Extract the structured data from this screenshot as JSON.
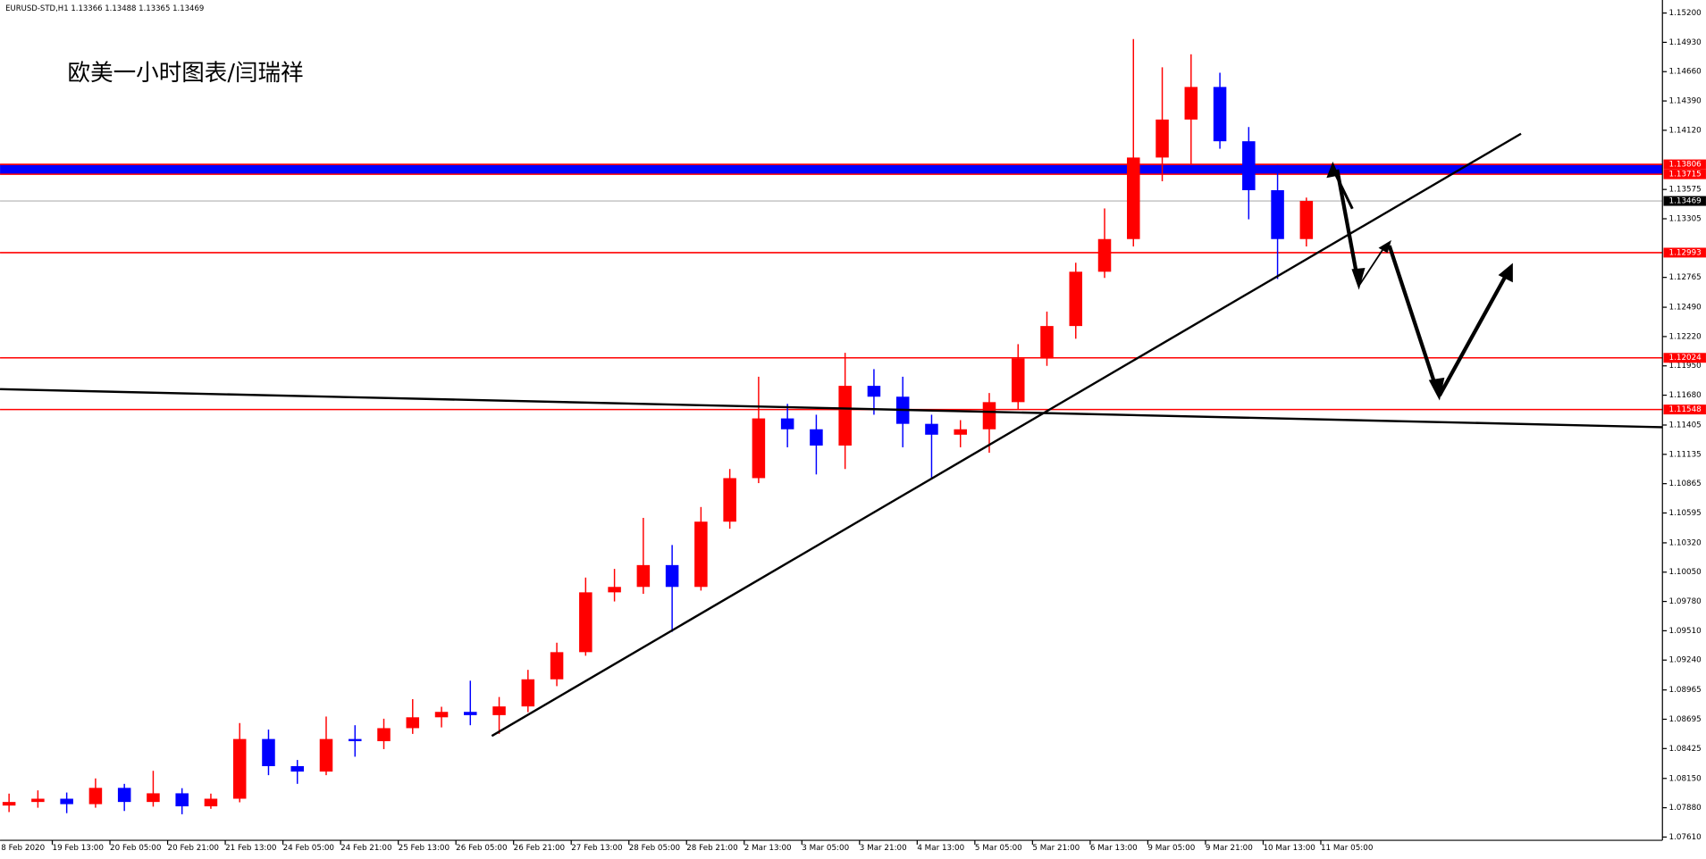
{
  "chart_data": {
    "type": "candlestick",
    "header": "EURUSD-STD,H1  1.13366 1.13488 1.13365 1.13469",
    "title": "欧美一小时图表/闫瑞祥",
    "up_color": "#ff0000",
    "down_color": "#0000ff",
    "x": [
      4,
      12,
      20,
      28,
      36,
      44,
      52,
      60,
      68,
      76,
      84,
      92,
      100,
      108,
      116,
      124,
      132,
      140,
      148,
      156,
      164,
      172,
      180,
      188,
      196,
      204,
      212,
      220,
      228,
      236,
      244,
      252,
      260,
      268,
      276,
      284,
      292,
      300,
      308,
      316,
      324,
      332,
      340,
      348,
      356,
      364
    ],
    "open": [
      1.079,
      1.07933,
      1.07963,
      1.07913,
      1.08063,
      1.07933,
      1.08013,
      1.07893,
      1.07963,
      1.08513,
      1.08263,
      1.08213,
      1.08513,
      1.08493,
      1.08613,
      1.08713,
      1.08763,
      1.08733,
      1.08813,
      1.09063,
      1.09313,
      1.09864,
      1.09914,
      1.10115,
      1.09914,
      1.10515,
      1.10916,
      1.11466,
      1.11366,
      1.11216,
      1.11766,
      1.11666,
      1.11416,
      1.11316,
      1.11366,
      1.11616,
      1.12017,
      1.12317,
      1.12817,
      1.13118,
      1.13869,
      1.14219,
      1.14519,
      1.14019,
      1.13568,
      1.13118
    ],
    "high": [
      1.0801,
      1.0804,
      1.0802,
      1.0815,
      1.081,
      1.0822,
      1.0806,
      1.0801,
      1.0866,
      1.086,
      1.0832,
      1.0872,
      1.0864,
      1.087,
      1.0888,
      1.0881,
      1.0905,
      1.089,
      1.0915,
      1.094,
      1.1,
      1.1008,
      1.1055,
      1.103,
      1.1065,
      1.11,
      1.1185,
      1.116,
      1.115,
      1.1207,
      1.1192,
      1.1185,
      1.115,
      1.1145,
      1.117,
      1.1215,
      1.1245,
      1.129,
      1.134,
      1.1496,
      1.147,
      1.1482,
      1.1465,
      1.1415,
      1.138,
      1.135
    ],
    "low": [
      1.0784,
      1.0788,
      1.0783,
      1.0788,
      1.0785,
      1.0789,
      1.0782,
      1.0787,
      1.0793,
      1.0818,
      1.081,
      1.0818,
      1.0835,
      1.0842,
      1.0856,
      1.0862,
      1.0864,
      1.0856,
      1.0876,
      1.09,
      1.0928,
      1.0978,
      1.0985,
      1.095,
      1.0988,
      1.1045,
      1.1087,
      1.112,
      1.1095,
      1.11,
      1.115,
      1.112,
      1.1092,
      1.112,
      1.1115,
      1.1155,
      1.1195,
      1.122,
      1.1276,
      1.1305,
      1.1365,
      1.138,
      1.1395,
      1.133,
      1.1275,
      1.1305
    ],
    "close": [
      1.07933,
      1.07963,
      1.07913,
      1.08063,
      1.07933,
      1.08013,
      1.07893,
      1.07963,
      1.08513,
      1.08263,
      1.08213,
      1.08513,
      1.08493,
      1.08613,
      1.08713,
      1.08763,
      1.08733,
      1.08813,
      1.09063,
      1.09313,
      1.09864,
      1.09914,
      1.10115,
      1.09914,
      1.10515,
      1.10916,
      1.11466,
      1.11366,
      1.11216,
      1.11766,
      1.11666,
      1.11416,
      1.11316,
      1.11366,
      1.11616,
      1.12017,
      1.12317,
      1.12817,
      1.13118,
      1.13869,
      1.14219,
      1.14519,
      1.14019,
      1.13568,
      1.13118,
      1.13469
    ],
    "xlim": [
      1.5,
      462.8
    ],
    "xticks": [
      {
        "value": 0,
        "label": "8 Feb 2020"
      },
      {
        "value": 16,
        "label": "19 Feb 13:00"
      },
      {
        "value": 32,
        "label": "20 Feb 05:00"
      },
      {
        "value": 48,
        "label": "20 Feb 21:00"
      },
      {
        "value": 64,
        "label": "21 Feb 13:00"
      },
      {
        "value": 80,
        "label": "24 Feb 05:00"
      },
      {
        "value": 96,
        "label": "24 Feb 21:00"
      },
      {
        "value": 112,
        "label": "25 Feb 13:00"
      },
      {
        "value": 128,
        "label": "26 Feb 05:00"
      },
      {
        "value": 144,
        "label": "26 Feb 21:00"
      },
      {
        "value": 160,
        "label": "27 Feb 13:00"
      },
      {
        "value": 176,
        "label": "28 Feb 05:00"
      },
      {
        "value": 192,
        "label": "28 Feb 21:00"
      },
      {
        "value": 208,
        "label": "2 Mar 13:00"
      },
      {
        "value": 224,
        "label": "3 Mar 05:00"
      },
      {
        "value": 240,
        "label": "3 Mar 21:00"
      },
      {
        "value": 256,
        "label": "4 Mar 13:00"
      },
      {
        "value": 272,
        "label": "5 Mar 05:00"
      },
      {
        "value": 288,
        "label": "5 Mar 21:00"
      },
      {
        "value": 304,
        "label": "6 Mar 13:00"
      },
      {
        "value": 320,
        "label": "9 Mar 05:00"
      },
      {
        "value": 336,
        "label": "9 Mar 21:00"
      },
      {
        "value": 352,
        "label": "10 Mar 13:00"
      },
      {
        "value": 368,
        "label": "11 Mar 05:00"
      }
    ],
    "ylim": [
      1.0758,
      1.1532
    ],
    "yticks": [
      {
        "value": 1.152,
        "label": "1.15200"
      },
      {
        "value": 1.1493,
        "label": "1.14930"
      },
      {
        "value": 1.1466,
        "label": "1.14660"
      },
      {
        "value": 1.1439,
        "label": "1.14390"
      },
      {
        "value": 1.1412,
        "label": "1.14120"
      },
      1.13575,
      1.13305,
      1.12765,
      {
        "value": 1.1249,
        "label": "1.12490"
      },
      {
        "value": 1.1222,
        "label": "1.12220"
      },
      {
        "value": 1.1195,
        "label": "1.11950"
      },
      {
        "value": 1.1168,
        "label": "1.11680"
      },
      1.11405,
      1.11135,
      1.10865,
      1.10595,
      {
        "value": 1.1032,
        "label": "1.10320"
      },
      {
        "value": 1.1005,
        "label": "1.10050"
      },
      {
        "value": 1.0978,
        "label": "1.09780"
      },
      {
        "value": 1.0951,
        "label": "1.09510"
      },
      {
        "value": 1.0924,
        "label": "1.09240"
      },
      1.08965,
      1.08695,
      1.08425,
      {
        "value": 1.0815,
        "label": "1.08150"
      },
      {
        "value": 1.0788,
        "label": "1.07880"
      },
      {
        "value": 1.0761,
        "label": "1.07610"
      }
    ],
    "band_color": "#0000ff",
    "levels": [
      {
        "value": 1.13806,
        "color": "#ff0000"
      },
      {
        "value": 1.13715,
        "color": "#ff0000"
      },
      {
        "value": 1.13469,
        "color": "#000000"
      },
      {
        "value": 1.12993,
        "color": "#ff0000"
      },
      {
        "value": 1.12024,
        "color": "#ff0000"
      },
      {
        "value": 1.11548,
        "color": "#ff0000"
      }
    ]
  }
}
